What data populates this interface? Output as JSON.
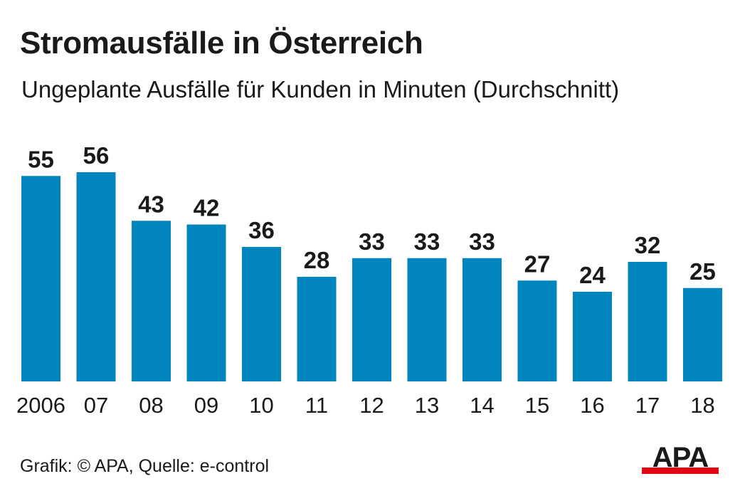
{
  "chart_data": {
    "type": "bar",
    "title": "Stromausfälle in Österreich",
    "subtitle": "Ungeplante Ausfälle für Kunden in Minuten (Durchschnitt)",
    "categories": [
      "2006",
      "07",
      "08",
      "09",
      "10",
      "11",
      "12",
      "13",
      "14",
      "15",
      "16",
      "17",
      "18"
    ],
    "values": [
      55,
      56,
      43,
      42,
      36,
      28,
      33,
      33,
      33,
      27,
      24,
      32,
      25
    ],
    "bar_color": "#0085bf",
    "ylim": [
      0,
      56
    ],
    "grid": false
  },
  "footer": {
    "source": "Grafik: © APA, Quelle: e-control"
  },
  "logo": {
    "text": "APA",
    "accent_color": "#e30613"
  }
}
